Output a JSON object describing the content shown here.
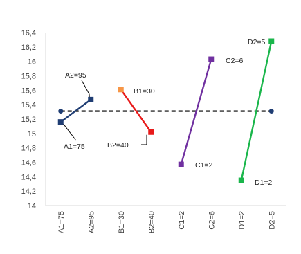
{
  "chart_data": {
    "type": "line",
    "categories": [
      "A1=75",
      "A2=95",
      "B1=30",
      "B2=40",
      "C1=2",
      "C2=6",
      "D1=2",
      "D2=5"
    ],
    "ylim": [
      14,
      16.4
    ],
    "yticks": [
      "14",
      "14,2",
      "14,4",
      "14,6",
      "14,8",
      "15",
      "15,2",
      "15,4",
      "15,6",
      "15,8",
      "16",
      "16,2",
      "16,4"
    ],
    "reference_line": {
      "value": 15.31,
      "style": "dashed",
      "color": "#000000"
    },
    "series": [
      {
        "x": [
          "A1=75",
          "A2=95"
        ],
        "values": [
          15.16,
          15.47
        ],
        "color": "#1F3D73",
        "labels": [
          "A1=75",
          "A2=95"
        ]
      },
      {
        "x": [
          "B1=30",
          "B2=40"
        ],
        "values": [
          15.61,
          15.02
        ],
        "colors": [
          "#F79646",
          "#E81A1A"
        ],
        "labels": [
          "B1=30",
          "B2=40"
        ]
      },
      {
        "x": [
          "C1=2",
          "C2=6"
        ],
        "values": [
          14.57,
          16.03
        ],
        "color": "#7030A0",
        "labels": [
          "C1=2",
          "C2=6"
        ]
      },
      {
        "x": [
          "D1=2",
          "D2=5"
        ],
        "values": [
          14.35,
          16.28
        ],
        "color": "#1AB64B",
        "labels": [
          "D1=2",
          "D2=5"
        ]
      }
    ],
    "grid": false,
    "legend": "none"
  }
}
